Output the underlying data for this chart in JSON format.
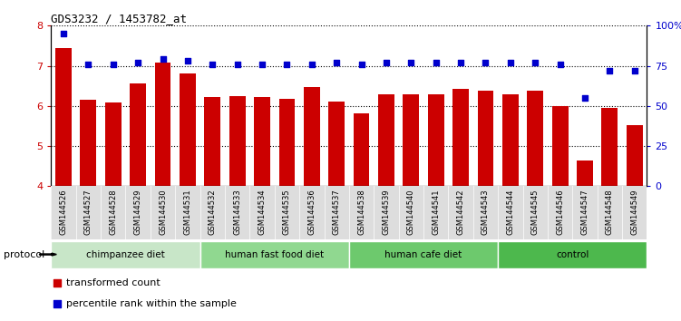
{
  "title": "GDS3232 / 1453782_at",
  "samples": [
    "GSM144526",
    "GSM144527",
    "GSM144528",
    "GSM144529",
    "GSM144530",
    "GSM144531",
    "GSM144532",
    "GSM144533",
    "GSM144534",
    "GSM144535",
    "GSM144536",
    "GSM144537",
    "GSM144538",
    "GSM144539",
    "GSM144540",
    "GSM144541",
    "GSM144542",
    "GSM144543",
    "GSM144544",
    "GSM144545",
    "GSM144546",
    "GSM144547",
    "GSM144548",
    "GSM144549"
  ],
  "bar_values": [
    7.45,
    6.15,
    6.08,
    6.55,
    7.08,
    6.82,
    6.22,
    6.25,
    6.22,
    6.18,
    6.48,
    6.12,
    5.82,
    6.28,
    6.28,
    6.3,
    6.42,
    6.38,
    6.28,
    6.38,
    6.0,
    4.65,
    5.95,
    5.52
  ],
  "percentile_values": [
    95,
    76,
    76,
    77,
    79,
    78,
    76,
    76,
    76,
    76,
    76,
    77,
    76,
    77,
    77,
    77,
    77,
    77,
    77,
    77,
    76,
    55,
    72,
    72
  ],
  "bar_color": "#cc0000",
  "percentile_color": "#0000cc",
  "groups": [
    {
      "label": "chimpanzee diet",
      "start": 0,
      "end": 5,
      "color": "#c8e6c8"
    },
    {
      "label": "human fast food diet",
      "start": 6,
      "end": 11,
      "color": "#90d890"
    },
    {
      "label": "human cafe diet",
      "start": 12,
      "end": 17,
      "color": "#6dc96d"
    },
    {
      "label": "control",
      "start": 18,
      "end": 23,
      "color": "#4db84d"
    }
  ],
  "ylim_left": [
    4,
    8
  ],
  "ylim_right": [
    0,
    100
  ],
  "yticks_left": [
    4,
    5,
    6,
    7,
    8
  ],
  "yticks_right": [
    0,
    25,
    50,
    75,
    100
  ],
  "ytick_labels_right": [
    "0",
    "25",
    "50",
    "75",
    "100%"
  ],
  "legend_items": [
    {
      "label": "transformed count",
      "color": "#cc0000"
    },
    {
      "label": "percentile rank within the sample",
      "color": "#0000cc"
    }
  ],
  "protocol_label": "protocol",
  "background_color": "#ffffff",
  "bar_width": 0.65,
  "tick_bg_color": "#dddddd"
}
